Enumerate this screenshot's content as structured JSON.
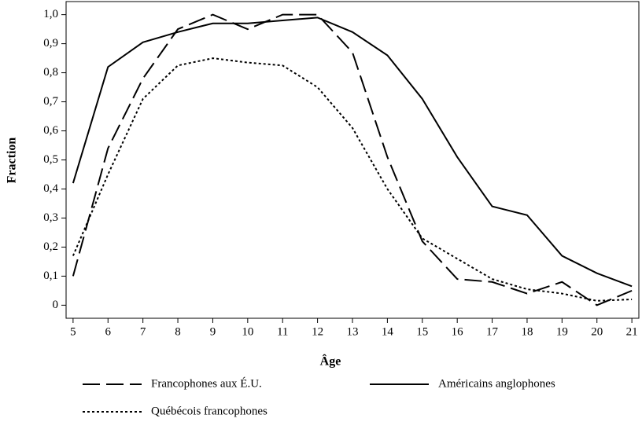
{
  "chart_data": {
    "type": "line",
    "xlabel": "Âge",
    "ylabel": "Fraction",
    "x": [
      5,
      6,
      7,
      8,
      9,
      10,
      11,
      12,
      13,
      14,
      15,
      16,
      17,
      18,
      19,
      20,
      21
    ],
    "xlim": [
      4.8,
      21.2
    ],
    "xticks": [
      5,
      6,
      7,
      8,
      9,
      10,
      11,
      12,
      13,
      14,
      15,
      16,
      17,
      18,
      19,
      20,
      21
    ],
    "ylim": [
      -0.045,
      1.045
    ],
    "yticks": [
      0,
      {
        "value": 0.1,
        "label": "0,1"
      },
      {
        "value": 0.2,
        "label": "0,2"
      },
      {
        "value": 0.3,
        "label": "0,3"
      },
      {
        "value": 0.4,
        "label": "0,4"
      },
      {
        "value": 0.5,
        "label": "0,5"
      },
      {
        "value": 0.6,
        "label": "0,6"
      },
      {
        "value": 0.7,
        "label": "0,7"
      },
      {
        "value": 0.8,
        "label": "0,8"
      },
      {
        "value": 0.9,
        "label": "0,9"
      },
      {
        "value": 1.0,
        "label": "1,0"
      }
    ],
    "series": [
      {
        "name": "Francophones aux É.U.",
        "color": "#000000",
        "dash": "dashed",
        "values": [
          0.1,
          0.54,
          0.78,
          0.95,
          1.0,
          0.95,
          1.0,
          1.0,
          0.87,
          0.51,
          0.22,
          0.09,
          0.08,
          0.04,
          0.08,
          0.0,
          0.05
        ]
      },
      {
        "name": "Américains anglophones",
        "color": "#000000",
        "dash": "solid",
        "values": [
          0.42,
          0.82,
          0.905,
          0.94,
          0.97,
          0.97,
          0.98,
          0.99,
          0.94,
          0.86,
          0.71,
          0.51,
          0.34,
          0.31,
          0.17,
          0.11,
          0.065
        ]
      },
      {
        "name": "Québécois francophones",
        "color": "#000000",
        "dash": "dotted",
        "values": [
          0.17,
          0.45,
          0.71,
          0.825,
          0.85,
          0.835,
          0.825,
          0.75,
          0.61,
          0.4,
          0.23,
          0.16,
          0.09,
          0.055,
          0.04,
          0.015,
          0.02
        ]
      }
    ]
  }
}
